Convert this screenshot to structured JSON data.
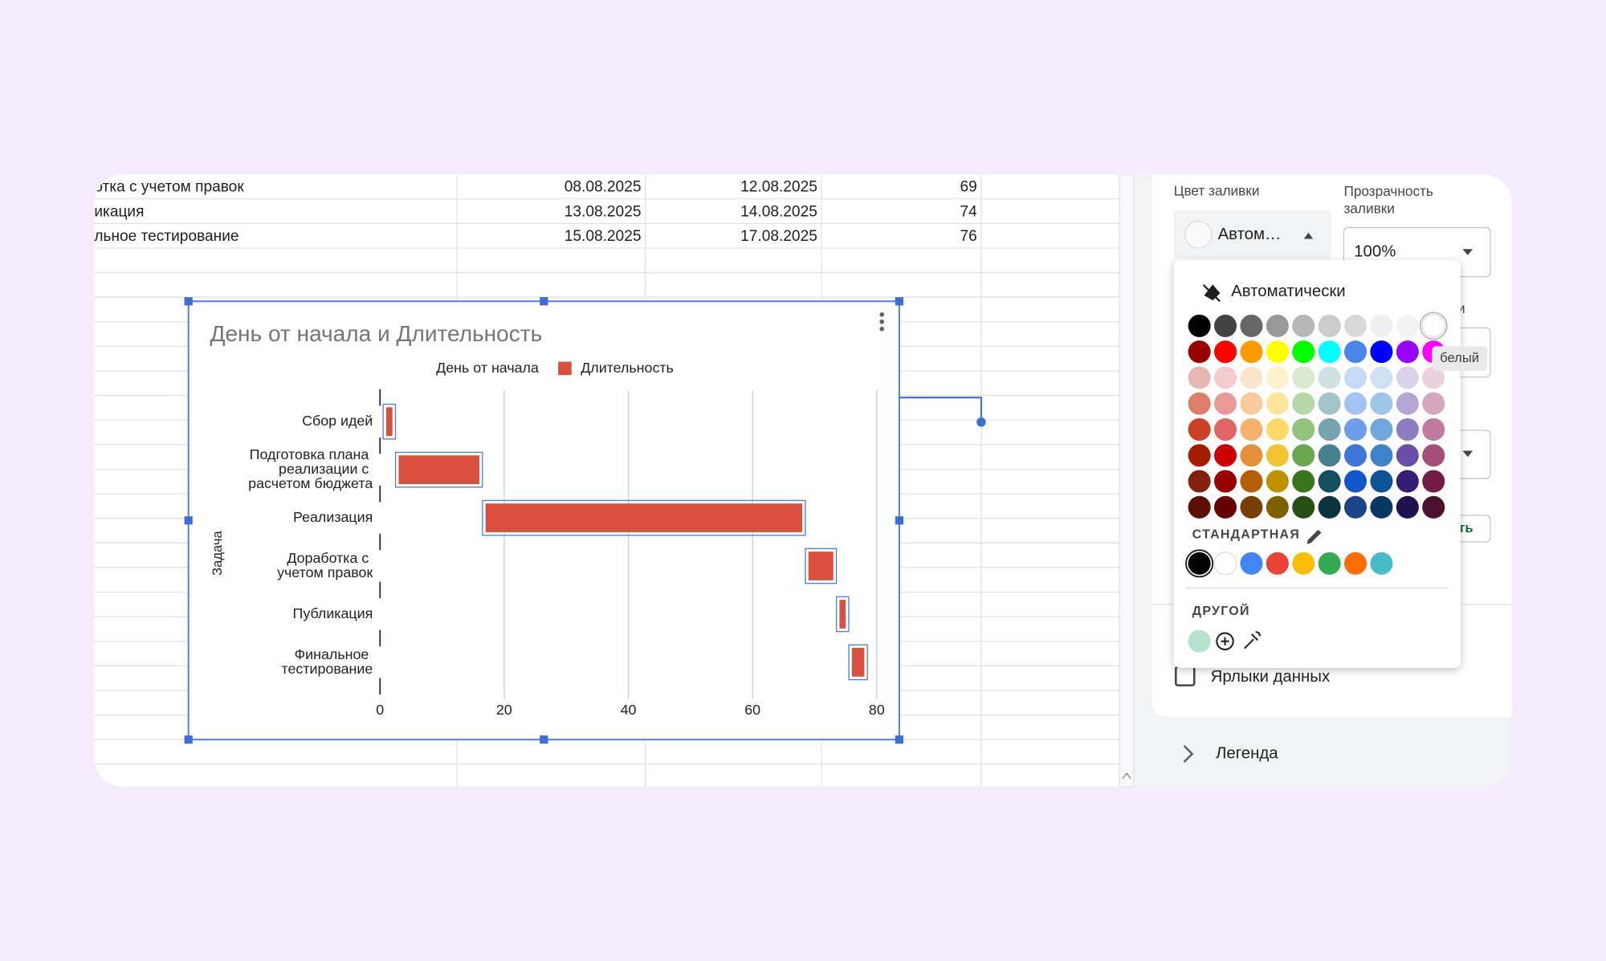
{
  "sheet": {
    "rows": [
      [
        "отка с учетом правок",
        "08.08.2025",
        "12.08.2025",
        69
      ],
      [
        "икация",
        "13.08.2025",
        "14.08.2025",
        74
      ],
      [
        "льное тестирование",
        "15.08.2025",
        "17.08.2025",
        76
      ]
    ]
  },
  "chart_data": {
    "type": "bar",
    "orientation": "horizontal",
    "stacked": true,
    "title": "День от начала и Длительность",
    "y_label": "Задача",
    "categories": [
      "Сбор идей",
      "Подготовка плана реализации с расчетом бюджета",
      "Реализация",
      "Доработка с учетом правок",
      "Публикация",
      "Финальное тестирование"
    ],
    "series": [
      {
        "name": "День от начала",
        "color": "transparent",
        "values": [
          1,
          3,
          17,
          69,
          74,
          76
        ]
      },
      {
        "name": "Длительность",
        "color": "#db4f3f",
        "values": [
          1,
          13,
          51,
          4,
          1,
          2
        ]
      }
    ],
    "xlim": [
      0,
      80
    ],
    "xticks": [
      0,
      20,
      40,
      60,
      80
    ],
    "grid": true,
    "legend": "top"
  },
  "panel": {
    "fill_color_label": "Цвет заливки",
    "opacity_label": "Прозрачность заливки",
    "fill_value": "Автом…",
    "opacity_value": "100%",
    "partial_label": "нии",
    "partial_button": "ть",
    "data_labels": "Ярлыки данных",
    "legend_section": "Легенда"
  },
  "color_picker": {
    "auto": "Автоматически",
    "tooltip": "белый",
    "standard_label": "СТАНДАРТНАЯ",
    "custom_label": "ДРУГОЙ",
    "palette": [
      [
        "#000000",
        "#434343",
        "#666666",
        "#999999",
        "#b7b7b7",
        "#cccccc",
        "#d9d9d9",
        "#efefef",
        "#f3f3f3",
        "#ffffff"
      ],
      [
        "#980000",
        "#ff0000",
        "#ff9900",
        "#ffff00",
        "#00ff00",
        "#00ffff",
        "#4a86e8",
        "#0000ff",
        "#9900ff",
        "#ff00ff"
      ],
      [
        "#e6b8af",
        "#f4cccc",
        "#fce5cd",
        "#fff2cc",
        "#d9ead3",
        "#d0e0e3",
        "#c9daf8",
        "#cfe2f3",
        "#d9d2e9",
        "#ead1dc"
      ],
      [
        "#dd7e6b",
        "#ea9999",
        "#f9cb9c",
        "#ffe599",
        "#b6d7a8",
        "#a2c4c9",
        "#a4c2f4",
        "#9fc5e8",
        "#b4a7d6",
        "#d5a6bd"
      ],
      [
        "#cc4125",
        "#e06666",
        "#f6b26b",
        "#ffd966",
        "#93c47d",
        "#76a5af",
        "#6d9eeb",
        "#6fa8dc",
        "#8e7cc3",
        "#c27ba0"
      ],
      [
        "#a61c00",
        "#cc0000",
        "#e69138",
        "#f1c232",
        "#6aa84f",
        "#45818e",
        "#3c78d8",
        "#3d85c6",
        "#674ea7",
        "#a64d79"
      ],
      [
        "#85200c",
        "#990000",
        "#b45f06",
        "#bf9000",
        "#38761d",
        "#134f5c",
        "#1155cc",
        "#0b5394",
        "#351c75",
        "#741b47"
      ],
      [
        "#5b0f00",
        "#660000",
        "#783f04",
        "#7f6000",
        "#274e13",
        "#0c343d",
        "#1c4587",
        "#073763",
        "#20124d",
        "#4c1130"
      ]
    ],
    "standard": [
      "#000000",
      "#ffffff",
      "#4285f4",
      "#ea4335",
      "#fbbc04",
      "#34a853",
      "#ff6d01",
      "#46bdc6"
    ],
    "custom": [
      "#b7e1cd"
    ]
  }
}
